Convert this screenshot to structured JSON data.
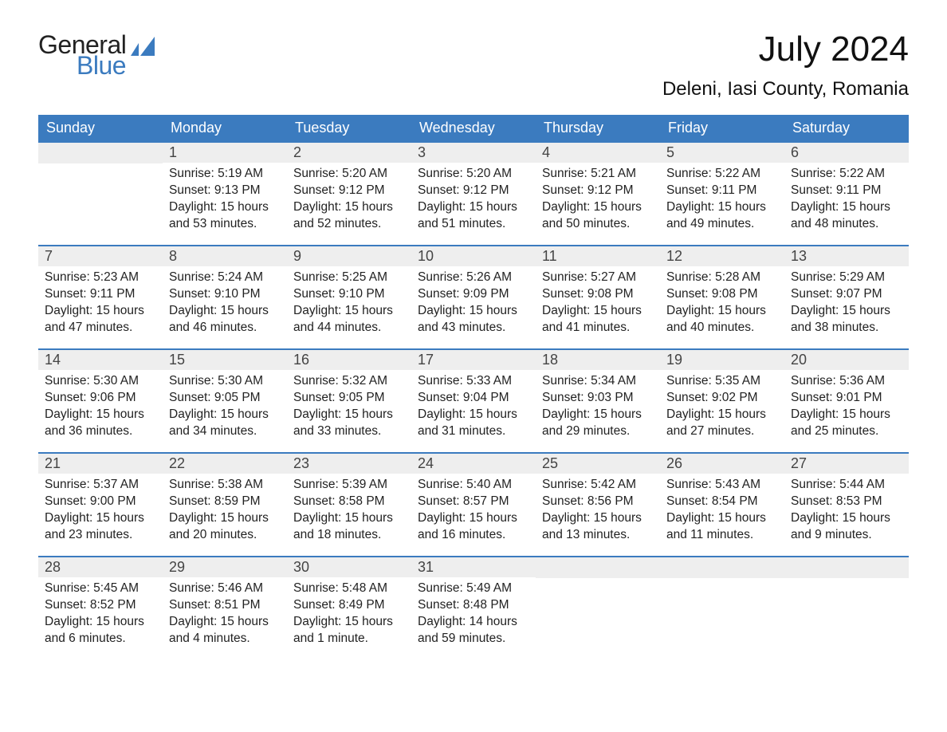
{
  "brand": {
    "text1": "General",
    "text2": "Blue",
    "color": "#3b7bbf"
  },
  "header": {
    "month_title": "July 2024",
    "location": "Deleni, Iasi County, Romania"
  },
  "colors": {
    "header_blue": "#3b7bbf",
    "daynum_bg": "#eeeeee",
    "background": "#ffffff",
    "text": "#222222"
  },
  "day_labels": [
    "Sunday",
    "Monday",
    "Tuesday",
    "Wednesday",
    "Thursday",
    "Friday",
    "Saturday"
  ],
  "weeks": [
    [
      {
        "empty": true
      },
      {
        "day": "1",
        "sunrise": "Sunrise: 5:19 AM",
        "sunset": "Sunset: 9:13 PM",
        "daylight1": "Daylight: 15 hours",
        "daylight2": "and 53 minutes."
      },
      {
        "day": "2",
        "sunrise": "Sunrise: 5:20 AM",
        "sunset": "Sunset: 9:12 PM",
        "daylight1": "Daylight: 15 hours",
        "daylight2": "and 52 minutes."
      },
      {
        "day": "3",
        "sunrise": "Sunrise: 5:20 AM",
        "sunset": "Sunset: 9:12 PM",
        "daylight1": "Daylight: 15 hours",
        "daylight2": "and 51 minutes."
      },
      {
        "day": "4",
        "sunrise": "Sunrise: 5:21 AM",
        "sunset": "Sunset: 9:12 PM",
        "daylight1": "Daylight: 15 hours",
        "daylight2": "and 50 minutes."
      },
      {
        "day": "5",
        "sunrise": "Sunrise: 5:22 AM",
        "sunset": "Sunset: 9:11 PM",
        "daylight1": "Daylight: 15 hours",
        "daylight2": "and 49 minutes."
      },
      {
        "day": "6",
        "sunrise": "Sunrise: 5:22 AM",
        "sunset": "Sunset: 9:11 PM",
        "daylight1": "Daylight: 15 hours",
        "daylight2": "and 48 minutes."
      }
    ],
    [
      {
        "day": "7",
        "sunrise": "Sunrise: 5:23 AM",
        "sunset": "Sunset: 9:11 PM",
        "daylight1": "Daylight: 15 hours",
        "daylight2": "and 47 minutes."
      },
      {
        "day": "8",
        "sunrise": "Sunrise: 5:24 AM",
        "sunset": "Sunset: 9:10 PM",
        "daylight1": "Daylight: 15 hours",
        "daylight2": "and 46 minutes."
      },
      {
        "day": "9",
        "sunrise": "Sunrise: 5:25 AM",
        "sunset": "Sunset: 9:10 PM",
        "daylight1": "Daylight: 15 hours",
        "daylight2": "and 44 minutes."
      },
      {
        "day": "10",
        "sunrise": "Sunrise: 5:26 AM",
        "sunset": "Sunset: 9:09 PM",
        "daylight1": "Daylight: 15 hours",
        "daylight2": "and 43 minutes."
      },
      {
        "day": "11",
        "sunrise": "Sunrise: 5:27 AM",
        "sunset": "Sunset: 9:08 PM",
        "daylight1": "Daylight: 15 hours",
        "daylight2": "and 41 minutes."
      },
      {
        "day": "12",
        "sunrise": "Sunrise: 5:28 AM",
        "sunset": "Sunset: 9:08 PM",
        "daylight1": "Daylight: 15 hours",
        "daylight2": "and 40 minutes."
      },
      {
        "day": "13",
        "sunrise": "Sunrise: 5:29 AM",
        "sunset": "Sunset: 9:07 PM",
        "daylight1": "Daylight: 15 hours",
        "daylight2": "and 38 minutes."
      }
    ],
    [
      {
        "day": "14",
        "sunrise": "Sunrise: 5:30 AM",
        "sunset": "Sunset: 9:06 PM",
        "daylight1": "Daylight: 15 hours",
        "daylight2": "and 36 minutes."
      },
      {
        "day": "15",
        "sunrise": "Sunrise: 5:30 AM",
        "sunset": "Sunset: 9:05 PM",
        "daylight1": "Daylight: 15 hours",
        "daylight2": "and 34 minutes."
      },
      {
        "day": "16",
        "sunrise": "Sunrise: 5:32 AM",
        "sunset": "Sunset: 9:05 PM",
        "daylight1": "Daylight: 15 hours",
        "daylight2": "and 33 minutes."
      },
      {
        "day": "17",
        "sunrise": "Sunrise: 5:33 AM",
        "sunset": "Sunset: 9:04 PM",
        "daylight1": "Daylight: 15 hours",
        "daylight2": "and 31 minutes."
      },
      {
        "day": "18",
        "sunrise": "Sunrise: 5:34 AM",
        "sunset": "Sunset: 9:03 PM",
        "daylight1": "Daylight: 15 hours",
        "daylight2": "and 29 minutes."
      },
      {
        "day": "19",
        "sunrise": "Sunrise: 5:35 AM",
        "sunset": "Sunset: 9:02 PM",
        "daylight1": "Daylight: 15 hours",
        "daylight2": "and 27 minutes."
      },
      {
        "day": "20",
        "sunrise": "Sunrise: 5:36 AM",
        "sunset": "Sunset: 9:01 PM",
        "daylight1": "Daylight: 15 hours",
        "daylight2": "and 25 minutes."
      }
    ],
    [
      {
        "day": "21",
        "sunrise": "Sunrise: 5:37 AM",
        "sunset": "Sunset: 9:00 PM",
        "daylight1": "Daylight: 15 hours",
        "daylight2": "and 23 minutes."
      },
      {
        "day": "22",
        "sunrise": "Sunrise: 5:38 AM",
        "sunset": "Sunset: 8:59 PM",
        "daylight1": "Daylight: 15 hours",
        "daylight2": "and 20 minutes."
      },
      {
        "day": "23",
        "sunrise": "Sunrise: 5:39 AM",
        "sunset": "Sunset: 8:58 PM",
        "daylight1": "Daylight: 15 hours",
        "daylight2": "and 18 minutes."
      },
      {
        "day": "24",
        "sunrise": "Sunrise: 5:40 AM",
        "sunset": "Sunset: 8:57 PM",
        "daylight1": "Daylight: 15 hours",
        "daylight2": "and 16 minutes."
      },
      {
        "day": "25",
        "sunrise": "Sunrise: 5:42 AM",
        "sunset": "Sunset: 8:56 PM",
        "daylight1": "Daylight: 15 hours",
        "daylight2": "and 13 minutes."
      },
      {
        "day": "26",
        "sunrise": "Sunrise: 5:43 AM",
        "sunset": "Sunset: 8:54 PM",
        "daylight1": "Daylight: 15 hours",
        "daylight2": "and 11 minutes."
      },
      {
        "day": "27",
        "sunrise": "Sunrise: 5:44 AM",
        "sunset": "Sunset: 8:53 PM",
        "daylight1": "Daylight: 15 hours",
        "daylight2": "and 9 minutes."
      }
    ],
    [
      {
        "day": "28",
        "sunrise": "Sunrise: 5:45 AM",
        "sunset": "Sunset: 8:52 PM",
        "daylight1": "Daylight: 15 hours",
        "daylight2": "and 6 minutes."
      },
      {
        "day": "29",
        "sunrise": "Sunrise: 5:46 AM",
        "sunset": "Sunset: 8:51 PM",
        "daylight1": "Daylight: 15 hours",
        "daylight2": "and 4 minutes."
      },
      {
        "day": "30",
        "sunrise": "Sunrise: 5:48 AM",
        "sunset": "Sunset: 8:49 PM",
        "daylight1": "Daylight: 15 hours",
        "daylight2": "and 1 minute."
      },
      {
        "day": "31",
        "sunrise": "Sunrise: 5:49 AM",
        "sunset": "Sunset: 8:48 PM",
        "daylight1": "Daylight: 14 hours",
        "daylight2": "and 59 minutes."
      },
      {
        "empty": true
      },
      {
        "empty": true
      },
      {
        "empty": true
      }
    ]
  ]
}
